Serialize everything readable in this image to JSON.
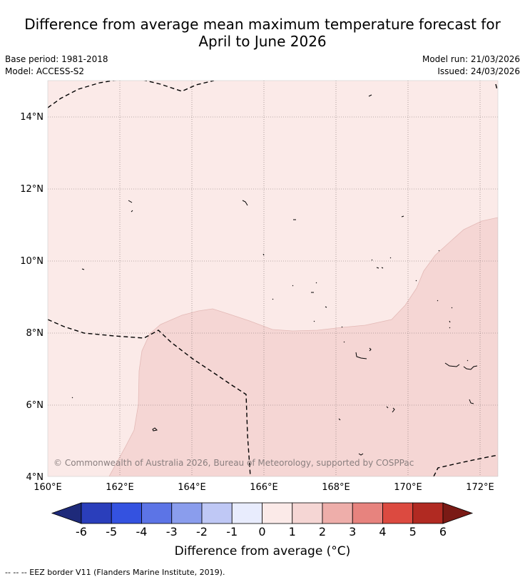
{
  "header": {
    "title_line1": "Difference from average mean maximum temperature forecast for",
    "title_line2": "April to June 2026",
    "base_period": "Base period: 1981-2018",
    "model": "Model: ACCESS-S2",
    "model_run": "Model run: 21/03/2026",
    "issued": "Issued: 24/03/2026"
  },
  "map": {
    "lat_labels": [
      "14°N",
      "12°N",
      "10°N",
      "8°N",
      "6°N",
      "4°N"
    ],
    "lon_labels": [
      "160°E",
      "162°E",
      "164°E",
      "166°E",
      "168°E",
      "170°E",
      "172°E"
    ],
    "copyright": "© Commonwealth of Australia 2026, Bureau of Meteorology, supported by COSPPac",
    "region_colors": {
      "zero_to_one": "#fbeae8",
      "one_to_two": "#f5d6d4"
    }
  },
  "colorbar": {
    "ticks": [
      "-6",
      "-5",
      "-4",
      "-3",
      "-2",
      "-1",
      "0",
      "1",
      "2",
      "3",
      "4",
      "5",
      "6"
    ],
    "colors": [
      "#1e2a7a",
      "#2a3ebb",
      "#3452e0",
      "#5c74e6",
      "#8a9ded",
      "#bfc8f5",
      "#e8ecfd",
      "#fbeae8",
      "#f5d6d4",
      "#eeaeaa",
      "#e7837e",
      "#dc4a40",
      "#b12a22",
      "#7a1a15"
    ],
    "title": "Difference from average (°C)"
  },
  "footnote": "-- -- -- EEZ border V11 (Flanders Marine Institute, 2019)."
}
